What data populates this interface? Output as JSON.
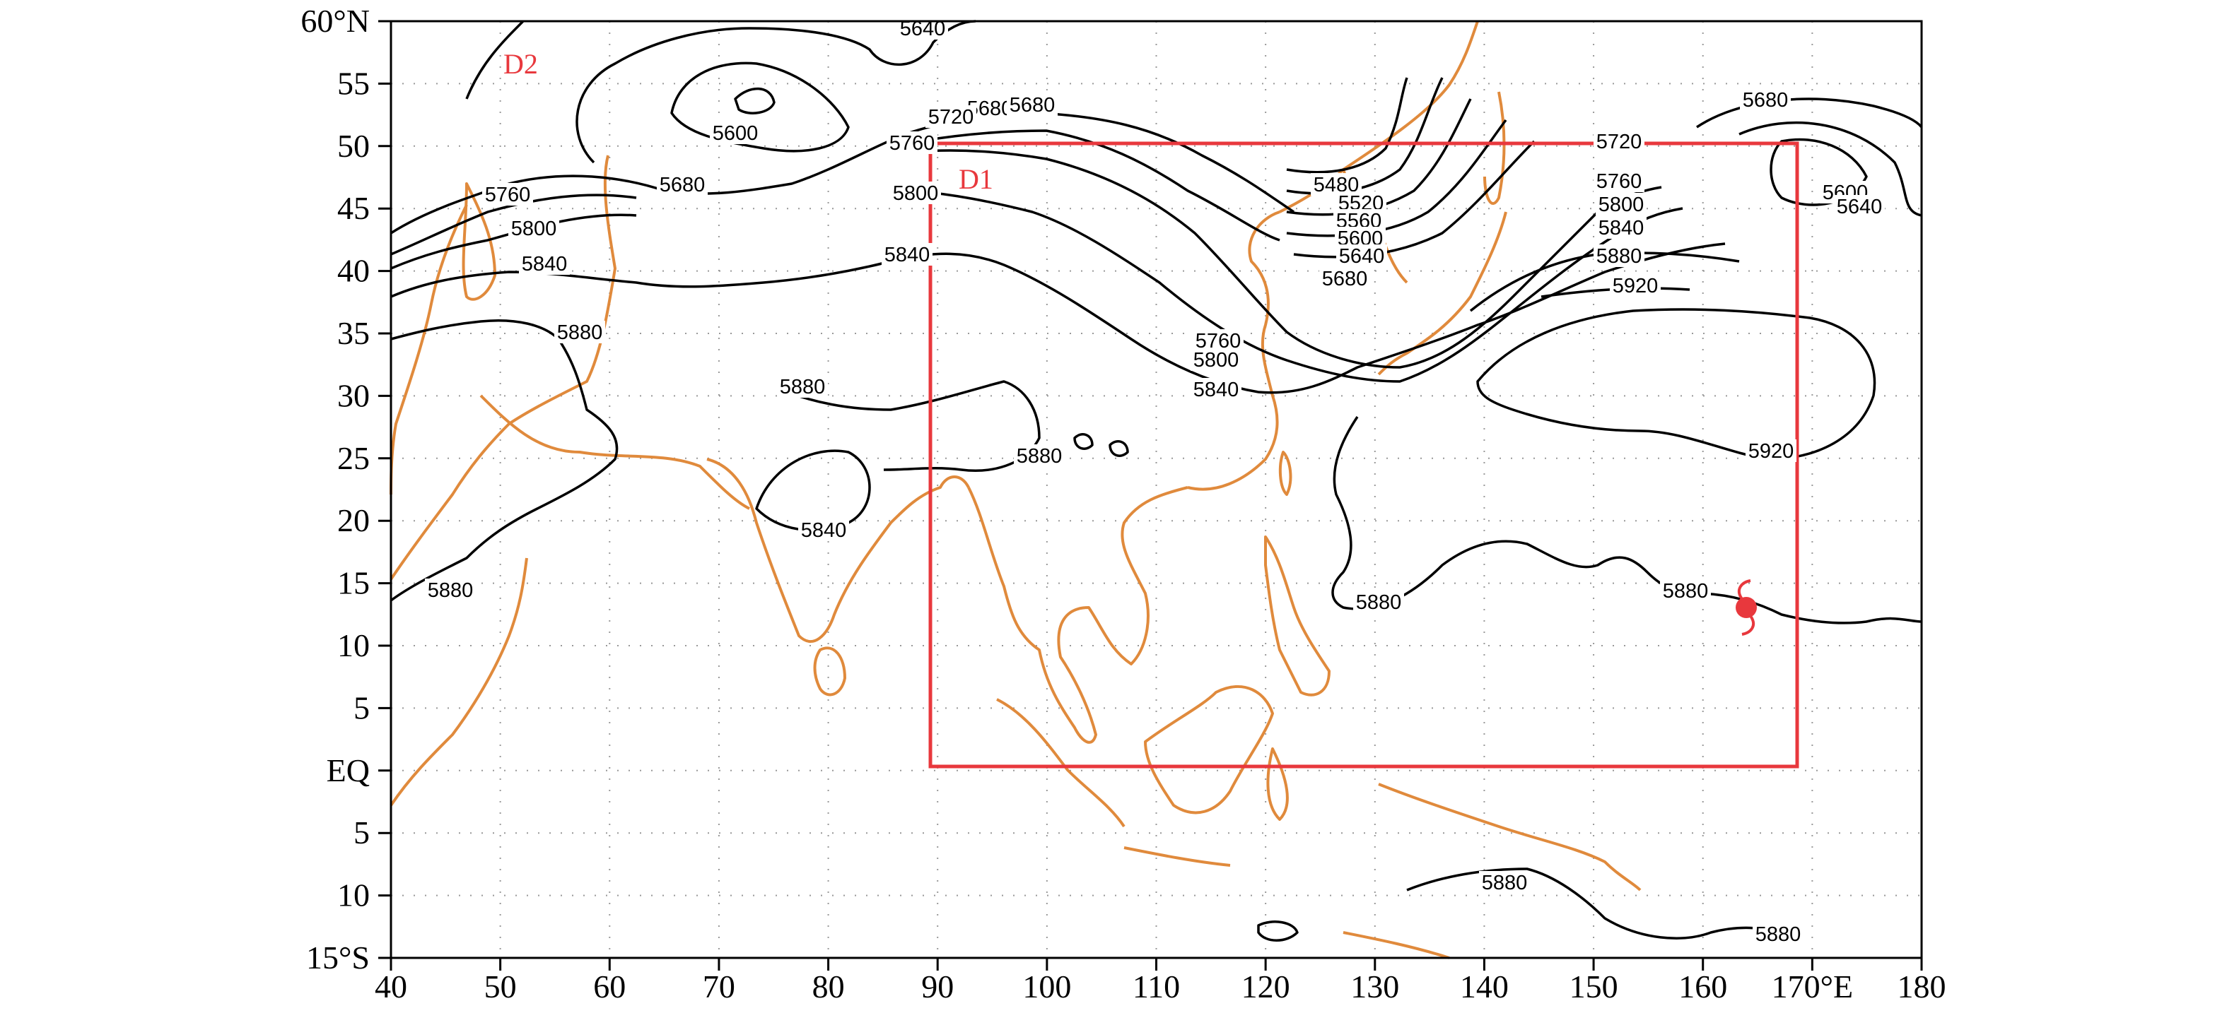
{
  "map": {
    "lon_ticks": [
      "40",
      "50",
      "60",
      "70",
      "80",
      "90",
      "100",
      "110",
      "120",
      "130",
      "140",
      "150",
      "160",
      "170°E",
      "180"
    ],
    "lat_ticks": [
      "60°N",
      "55",
      "50",
      "45",
      "40",
      "35",
      "30",
      "25",
      "20",
      "15",
      "10",
      "5",
      "EQ",
      "5",
      "10",
      "15°S"
    ],
    "domains": {
      "d1_label": "D1",
      "d2_label": "D2"
    },
    "contour_labels": [
      "5640",
      "5600",
      "5680",
      "5720",
      "5680",
      "5760",
      "5680",
      "5760",
      "5800",
      "5800",
      "5840",
      "5840",
      "5880",
      "5880",
      "5880",
      "5840",
      "5880",
      "5480",
      "5520",
      "5560",
      "5600",
      "5640",
      "5680",
      "5760",
      "5800",
      "5840",
      "5720",
      "5760",
      "5800",
      "5840",
      "5880",
      "5920",
      "5680",
      "5600",
      "5640",
      "5920",
      "5880",
      "5880",
      "5880",
      "5880"
    ],
    "colors": {
      "contour": "#000000",
      "coastline": "#e08a3c",
      "domain_box": "#e8383d",
      "typhoon": "#e8383d",
      "grid": "#999999"
    },
    "icons": {
      "typhoon_marker": "typhoon-icon"
    }
  }
}
